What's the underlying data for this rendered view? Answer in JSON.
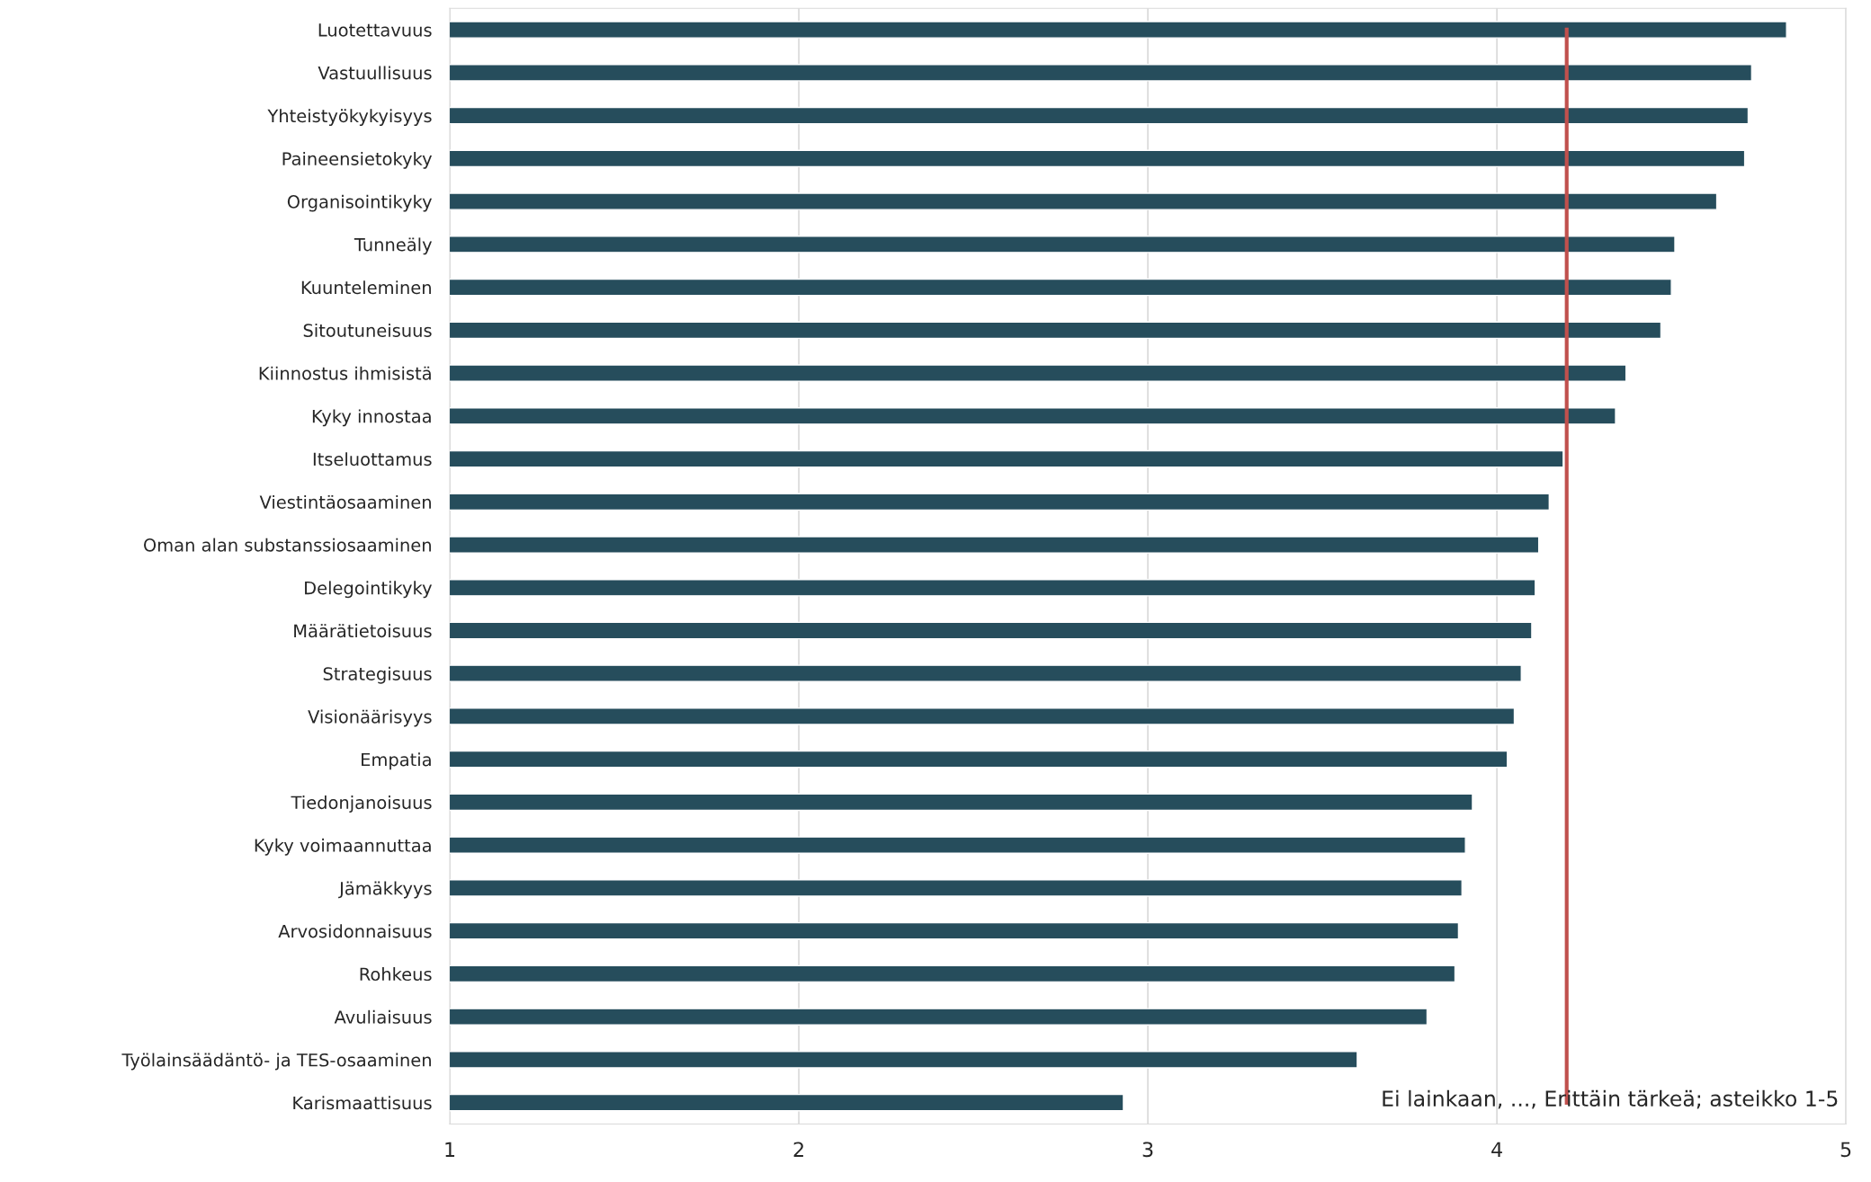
{
  "chart_data": {
    "type": "bar",
    "orientation": "horizontal",
    "categories": [
      "Luotettavuus",
      "Vastuullisuus",
      "Yhteistyökykyisyys",
      "Paineensietokyky",
      "Organisointikyky",
      "Tunneäly",
      "Kuunteleminen",
      "Sitoutuneisuus",
      "Kiinnostus ihmisistä",
      "Kyky innostaa",
      "Itseluottamus",
      "Viestintäosaaminen",
      "Oman alan substanssiosaaminen",
      "Delegointikyky",
      "Määrätietoisuus",
      "Strategisuus",
      "Visionäärisyys",
      "Empatia",
      "Tiedonjanoisuus",
      "Kyky voimaannuttaa",
      "Jämäkkyys",
      "Arvosidonnaisuus",
      "Rohkeus",
      "Avuliaisuus",
      "Työlainsäädäntö- ja TES-osaaminen",
      "Karismaattisuus"
    ],
    "values": [
      4.83,
      4.73,
      4.72,
      4.71,
      4.63,
      4.51,
      4.5,
      4.47,
      4.37,
      4.34,
      4.19,
      4.15,
      4.12,
      4.11,
      4.1,
      4.07,
      4.05,
      4.03,
      3.93,
      3.91,
      3.9,
      3.89,
      3.88,
      3.8,
      3.6,
      2.93
    ],
    "color": "#264d5c",
    "xlim": [
      1,
      5
    ],
    "xticks": [
      1,
      2,
      3,
      4,
      5
    ],
    "grid": "x",
    "ref_lines": [
      {
        "axis": "x",
        "value": 4.2,
        "color": "#c0504d"
      }
    ],
    "annotations": [
      "Ei lainkaan, ..., Erittäin tärkeä; asteikko 1-5"
    ]
  }
}
